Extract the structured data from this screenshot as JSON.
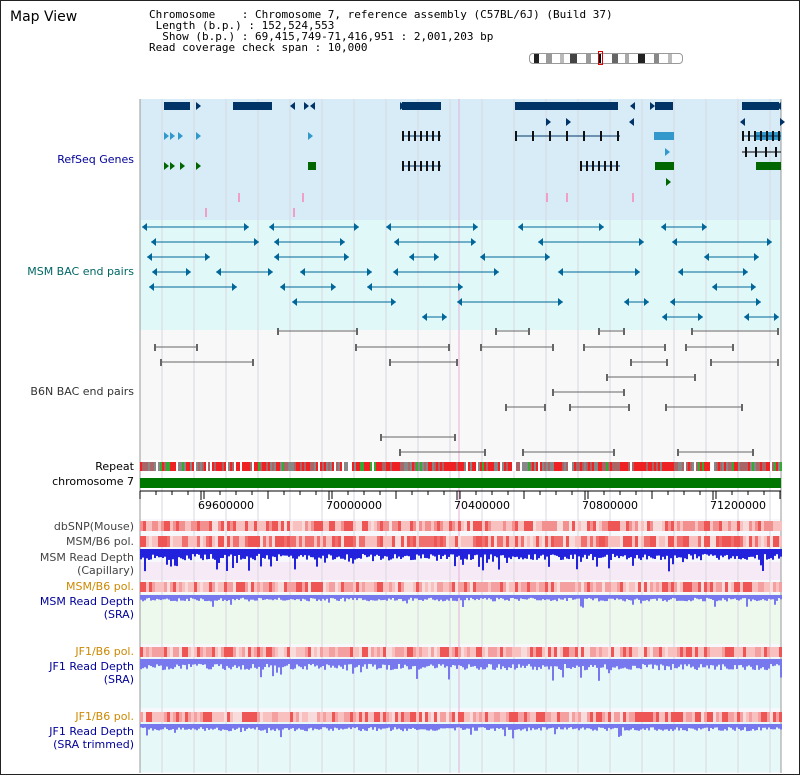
{
  "page": {
    "title": "Map View"
  },
  "info": {
    "line1": "Chromosome    : Chromosome 7, reference assembly (C57BL/6J) (Build 37)",
    "line2": " Length (b.p.) : 152,524,553",
    "line3": "  Show (b.p.) : 69,415,749-71,416,951 : 2,001,203 bp",
    "line4": "Read coverage check span : 10,000"
  },
  "tracks": {
    "refseq": "RefSeq Genes",
    "msm_bac": "MSM BAC end pairs",
    "b6n_bac": "B6N BAC end pairs",
    "repeat": "Repeat",
    "chromosome": "chromosome 7",
    "dbsnp": "dbSNP(Mouse)",
    "msm_b6_pol_1": "MSM/B6 pol.",
    "msm_depth_cap_1": "MSM Read Depth",
    "msm_depth_cap_2": "(Capillary)",
    "msm_b6_pol_2": "MSM/B6 pol.",
    "msm_depth_sra_1": "MSM Read Depth",
    "msm_depth_sra_2": "(SRA)",
    "jf1_b6_pol_1": "JF1/B6 pol.",
    "jf1_depth_sra_1": "JF1 Read Depth",
    "jf1_depth_sra_2": "(SRA)",
    "jf1_b6_pol_2": "JF1/B6 pol.",
    "jf1_depth_trim_1": "JF1 Read Depth",
    "jf1_depth_trim_2": "(SRA trimmed)"
  },
  "axis": {
    "ticks": [
      "69600000",
      "70000000",
      "70400000",
      "70800000",
      "71200000"
    ]
  },
  "colors": {
    "refseq_bg": "#d8ecf8",
    "msm_bac_bg": "#e0f8f8",
    "b6n_bac_bg": "#f8f8f8",
    "refseq_dark": "#003366",
    "refseq_light": "#3399cc",
    "refseq_green": "#006600",
    "msm_pair": "#006699",
    "b6n_pair": "#666666",
    "chromosome_bar": "#007700",
    "depth_blue": "#2222dd",
    "depth_sra": "#7777ee",
    "label_blue": "#000099",
    "label_orange": "#cc8800",
    "label_teal": "#006666"
  }
}
